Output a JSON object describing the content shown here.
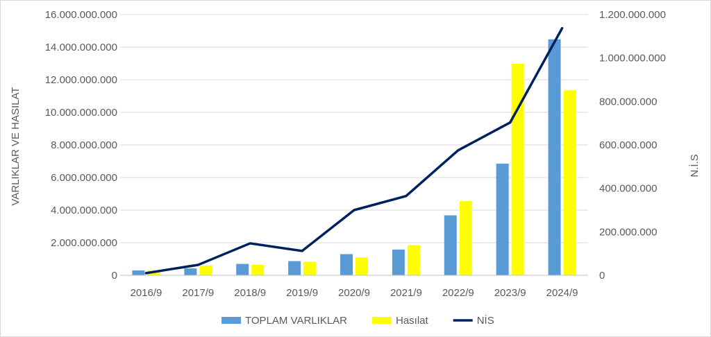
{
  "chart_data": {
    "type": "bar",
    "categories": [
      "2016/9",
      "2017/9",
      "2018/9",
      "2019/9",
      "2020/9",
      "2021/9",
      "2022/9",
      "2023/9",
      "2024/9"
    ],
    "series": [
      {
        "name": "TOPLAM VARLIKLAR",
        "kind": "bar",
        "axis": "left",
        "color": "#5b9bd5",
        "values": [
          300000000,
          420000000,
          700000000,
          870000000,
          1300000000,
          1580000000,
          3680000000,
          6850000000,
          14480000000
        ]
      },
      {
        "name": "Hasılat",
        "kind": "bar",
        "axis": "left",
        "color": "#ffff00",
        "values": [
          280000000,
          600000000,
          650000000,
          830000000,
          1100000000,
          1850000000,
          4550000000,
          12980000000,
          11350000000
        ]
      },
      {
        "name": "NİS",
        "kind": "line",
        "axis": "right",
        "color": "#002060",
        "values": [
          10000000,
          48000000,
          147000000,
          112000000,
          300000000,
          365000000,
          575000000,
          703000000,
          1137000000
        ]
      }
    ],
    "y_left": {
      "label": "VARLIKLAR VE HASILAT",
      "min": 0,
      "max": 16000000000,
      "ticks": [
        "0",
        "2.000.000.000",
        "4.000.000.000",
        "6.000.000.000",
        "8.000.000.000",
        "10.000.000.000",
        "12.000.000.000",
        "14.000.000.000",
        "16.000.000.000"
      ]
    },
    "y_right": {
      "label": "N.İ.S",
      "min": 0,
      "max": 1200000000,
      "ticks": [
        "0",
        "200.000.000",
        "400.000.000",
        "600.000.000",
        "800.000.000",
        "1.000.000.000",
        "1.200.000.000"
      ]
    },
    "grid": true,
    "legend_position": "bottom"
  }
}
